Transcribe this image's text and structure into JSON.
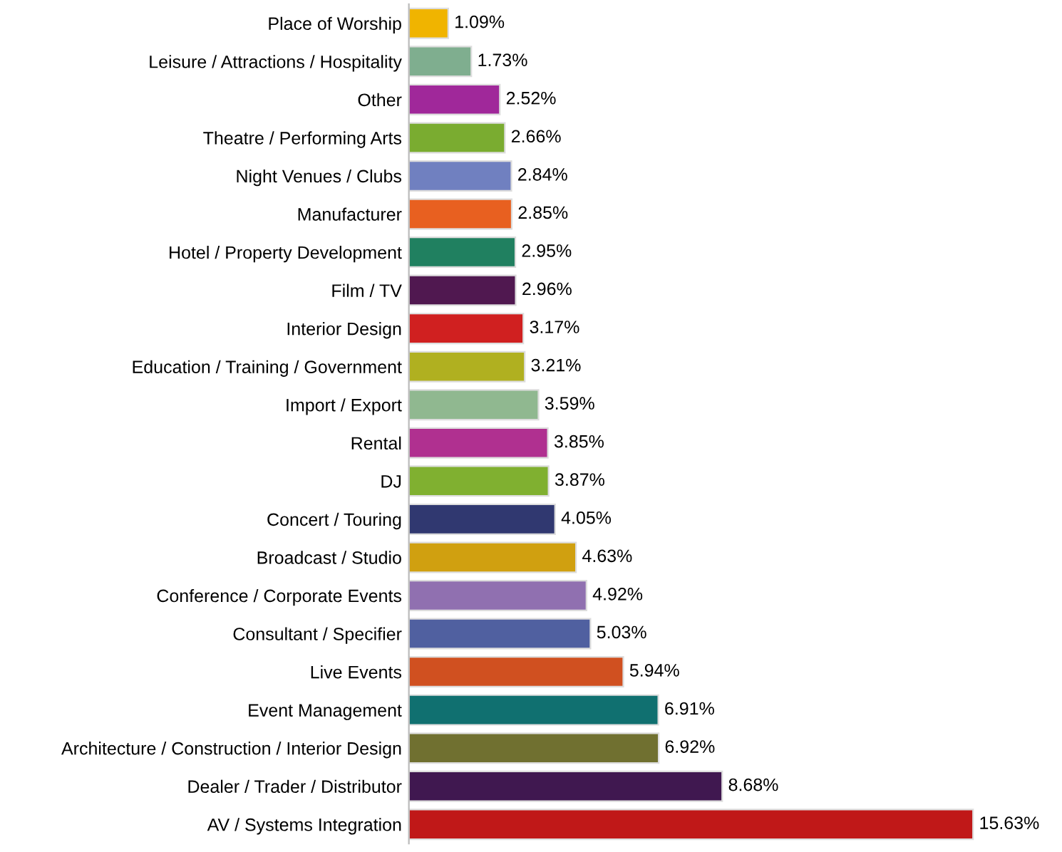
{
  "chart_data": {
    "type": "bar",
    "orientation": "horizontal",
    "tick_labels": "y",
    "grid": false,
    "categories": [
      "Place of Worship",
      "Leisure / Attractions / Hospitality",
      "Other",
      "Theatre / Performing Arts",
      "Night Venues / Clubs",
      "Manufacturer",
      "Hotel / Property Development",
      "Film / TV",
      "Interior Design",
      "Education / Training / Government",
      "Import / Export",
      "Rental",
      "DJ",
      "Concert / Touring",
      "Broadcast / Studio",
      "Conference / Corporate Events",
      "Consultant / Specifier",
      "Live Events",
      "Event Management",
      "Architecture / Construction / Interior Design",
      "Dealer / Trader / Distributor",
      "AV / Systems Integration"
    ],
    "values": [
      1.09,
      1.73,
      2.52,
      2.66,
      2.84,
      2.85,
      2.95,
      2.96,
      3.17,
      3.21,
      3.59,
      3.85,
      3.87,
      4.05,
      4.63,
      4.92,
      5.03,
      5.94,
      6.91,
      6.92,
      8.68,
      15.63
    ],
    "value_labels": [
      "1.09%",
      "1.73%",
      "2.52%",
      "2.66%",
      "2.84%",
      "2.85%",
      "2.95%",
      "2.96%",
      "3.17%",
      "3.21%",
      "3.59%",
      "3.85%",
      "3.87%",
      "4.05%",
      "4.63%",
      "4.92%",
      "5.03%",
      "5.94%",
      "6.91%",
      "6.92%",
      "8.68%",
      "15.63%"
    ],
    "colors": [
      "#f0b400",
      "#7fae8f",
      "#a0289a",
      "#7aac30",
      "#7080c0",
      "#e86020",
      "#208060",
      "#501850",
      "#d02020",
      "#b0b020",
      "#90b890",
      "#b03090",
      "#80b030",
      "#303870",
      "#d0a010",
      "#9070b0",
      "#5060a0",
      "#d05020",
      "#107070",
      "#707030",
      "#401850",
      "#c01818"
    ]
  }
}
